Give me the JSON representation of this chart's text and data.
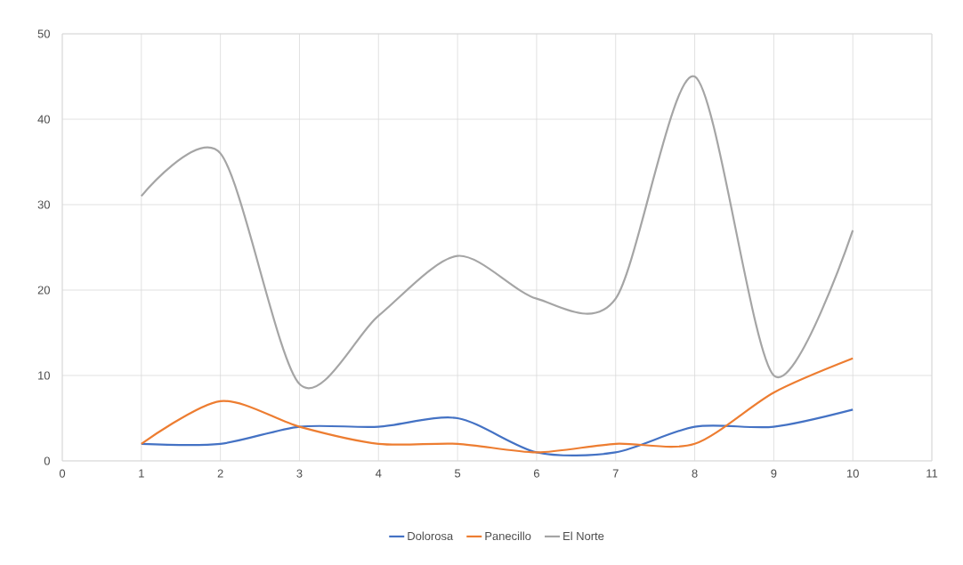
{
  "chart_data": {
    "type": "line",
    "x": [
      1,
      2,
      3,
      4,
      5,
      6,
      7,
      8,
      9,
      10
    ],
    "series": [
      {
        "name": "Dolorosa",
        "color": "#4472c4",
        "values": [
          2,
          2,
          4,
          4,
          5,
          1,
          1,
          4,
          4,
          6
        ]
      },
      {
        "name": "Panecillo",
        "color": "#ed7d31",
        "values": [
          2,
          7,
          4,
          2,
          2,
          1,
          2,
          2,
          8,
          12
        ]
      },
      {
        "name": "El Norte",
        "color": "#a5a5a5",
        "values": [
          31,
          36,
          9,
          17,
          24,
          19,
          19,
          45,
          10,
          27
        ]
      }
    ],
    "xlim": [
      0,
      11
    ],
    "xticks": [
      0,
      1,
      2,
      3,
      4,
      5,
      6,
      7,
      8,
      9,
      10,
      11
    ],
    "ylim": [
      0,
      50
    ],
    "yticks": [
      0,
      10,
      20,
      30,
      40,
      50
    ],
    "grid": true,
    "legend": "bottom"
  }
}
